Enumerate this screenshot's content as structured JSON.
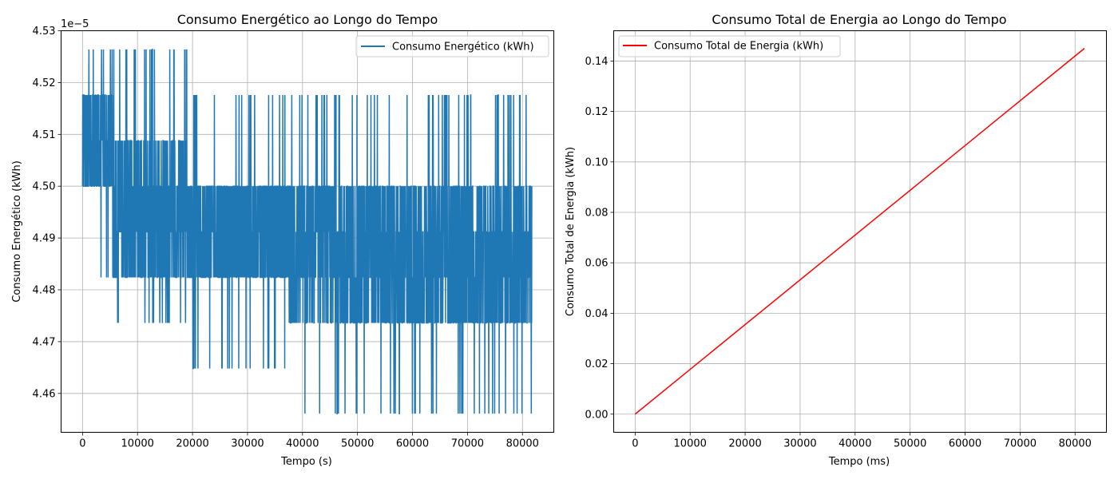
{
  "chart_data": [
    {
      "type": "line",
      "title": "Consumo Energético ao Longo do Tempo",
      "xlabel": "Tempo (s)",
      "ylabel": "Consumo Energético (kWh)",
      "offset_text": "1e−5",
      "xlim": [
        -3900,
        85700
      ],
      "ylim": [
        4.4525,
        4.53
      ],
      "y_scale_exponent": -5,
      "x_ticks": [
        0,
        10000,
        20000,
        30000,
        40000,
        50000,
        60000,
        70000,
        80000
      ],
      "x_tick_labels": [
        "0",
        "10000",
        "20000",
        "30000",
        "40000",
        "50000",
        "60000",
        "70000",
        "80000"
      ],
      "y_ticks": [
        4.46,
        4.47,
        4.48,
        4.49,
        4.5,
        4.51,
        4.52,
        4.53
      ],
      "y_tick_labels": [
        "4.46",
        "4.47",
        "4.48",
        "4.49",
        "4.50",
        "4.51",
        "4.52",
        "4.53"
      ],
      "grid": true,
      "legend": {
        "position": "upper right",
        "entries": [
          "Consumo Energético (kWh)"
        ]
      },
      "series": [
        {
          "name": "Consumo Energético (kWh)",
          "color": "#1f77b4",
          "style": "noisy signal with discrete levels",
          "x_range": [
            0,
            81700
          ],
          "levels": [
            4.4561,
            4.4648,
            4.4736,
            4.4824,
            4.4912,
            4.5,
            4.5088,
            4.5176,
            4.5264
          ],
          "segments": [
            {
              "x": [
                0,
                5500
              ],
              "dense_band": [
                4.5,
                4.5176
              ],
              "low": 4.4824,
              "high": 4.5264
            },
            {
              "x": [
                5500,
                19000
              ],
              "dense_band": [
                4.4824,
                4.5088
              ],
              "low": 4.4736,
              "high": 4.5264
            },
            {
              "x": [
                19000,
                37500
              ],
              "dense_band": [
                4.4824,
                4.5
              ],
              "low": 4.4648,
              "high": 4.5176
            },
            {
              "x": [
                37500,
                81700
              ],
              "dense_band": [
                4.4736,
                4.5
              ],
              "low": 4.4561,
              "high": 4.5176
            }
          ]
        }
      ]
    },
    {
      "type": "line",
      "title": "Consumo Total de Energia ao Longo do Tempo",
      "xlabel": "Tempo (ms)",
      "ylabel": "Consumo Total de Energia (kWh)",
      "xlim": [
        -3900,
        85700
      ],
      "ylim": [
        -0.0072,
        0.152
      ],
      "x_ticks": [
        0,
        10000,
        20000,
        30000,
        40000,
        50000,
        60000,
        70000,
        80000
      ],
      "x_tick_labels": [
        "0",
        "10000",
        "20000",
        "30000",
        "40000",
        "50000",
        "60000",
        "70000",
        "80000"
      ],
      "y_ticks": [
        0.0,
        0.02,
        0.04,
        0.06,
        0.08,
        0.1,
        0.12,
        0.14
      ],
      "y_tick_labels": [
        "0.00",
        "0.02",
        "0.04",
        "0.06",
        "0.08",
        "0.10",
        "0.12",
        "0.14"
      ],
      "grid": true,
      "legend": {
        "position": "upper left",
        "entries": [
          "Consumo Total de Energia (kWh)"
        ]
      },
      "series": [
        {
          "name": "Consumo Total de Energia (kWh)",
          "color": "#ff0000",
          "x": [
            0,
            81700
          ],
          "y": [
            0.0,
            0.145
          ]
        }
      ]
    }
  ]
}
